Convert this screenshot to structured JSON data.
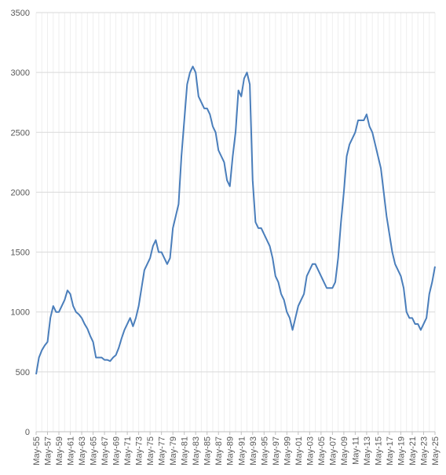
{
  "chart_data": {
    "type": "line",
    "categories": [
      "May-55",
      null,
      null,
      null,
      "May-57",
      null,
      null,
      null,
      "May-59",
      null,
      null,
      null,
      "May-61",
      null,
      null,
      null,
      "May-63",
      null,
      null,
      null,
      "May-65",
      null,
      null,
      null,
      "May-67",
      null,
      null,
      null,
      "May-69",
      null,
      null,
      null,
      "May-71",
      null,
      null,
      null,
      "May-73",
      null,
      null,
      null,
      "May-75",
      null,
      null,
      null,
      "May-77",
      null,
      null,
      null,
      "May-79",
      null,
      null,
      null,
      "May-81",
      null,
      null,
      null,
      "May-83",
      null,
      null,
      null,
      "May-85",
      null,
      null,
      null,
      "May-87",
      null,
      null,
      null,
      "May-89",
      null,
      null,
      null,
      "May-91",
      null,
      null,
      null,
      "May-93",
      null,
      null,
      null,
      "May-95",
      null,
      null,
      null,
      "May-97",
      null,
      null,
      null,
      "May-99",
      null,
      null,
      null,
      "May-01",
      null,
      null,
      null,
      "May-03",
      null,
      null,
      null,
      "May-05",
      null,
      null,
      null,
      "May-07",
      null,
      null,
      null,
      "May-09",
      null,
      null,
      null,
      "May-11",
      null,
      null,
      null,
      "May-13",
      null,
      null,
      null,
      "May-15",
      null,
      null,
      null,
      "May-17",
      null,
      null,
      null,
      "May-19",
      null,
      null,
      null,
      "May-21",
      null,
      null,
      null,
      "May-23",
      null,
      null,
      null,
      "May-25"
    ],
    "series": [
      {
        "color": "#4a7ebb",
        "values": [
          480,
          620,
          680,
          720,
          750,
          950,
          1050,
          1000,
          1000,
          1050,
          1100,
          1180,
          1150,
          1050,
          1000,
          980,
          950,
          900,
          860,
          800,
          750,
          620,
          620,
          620,
          600,
          600,
          590,
          620,
          640,
          700,
          780,
          850,
          900,
          950,
          880,
          950,
          1050,
          1200,
          1350,
          1400,
          1450,
          1550,
          1600,
          1500,
          1500,
          1450,
          1400,
          1450,
          1700,
          1800,
          1900,
          2300,
          2600,
          2900,
          3000,
          3050,
          3000,
          2800,
          2750,
          2700,
          2700,
          2650,
          2550,
          2500,
          2350,
          2300,
          2250,
          2100,
          2050,
          2300,
          2500,
          2850,
          2800,
          2950,
          3000,
          2900,
          2100,
          1750,
          1700,
          1700,
          1650,
          1600,
          1550,
          1450,
          1300,
          1250,
          1150,
          1100,
          1000,
          950,
          850,
          950,
          1050,
          1100,
          1150,
          1300,
          1350,
          1400,
          1400,
          1350,
          1300,
          1250,
          1200,
          1200,
          1200,
          1250,
          1450,
          1750,
          2000,
          2300,
          2400,
          2450,
          2500,
          2600,
          2600,
          2600,
          2650,
          2550,
          2500,
          2400,
          2300,
          2200,
          2000,
          1800,
          1650,
          1500,
          1400,
          1350,
          1300,
          1200,
          1000,
          950,
          950,
          900,
          900,
          850,
          900,
          950,
          1150,
          1250,
          1380
        ]
      }
    ],
    "ylim": [
      0,
      3500
    ],
    "yticks": [
      0,
      500,
      1000,
      1500,
      2000,
      2500,
      3000,
      3500
    ],
    "grid": true
  }
}
